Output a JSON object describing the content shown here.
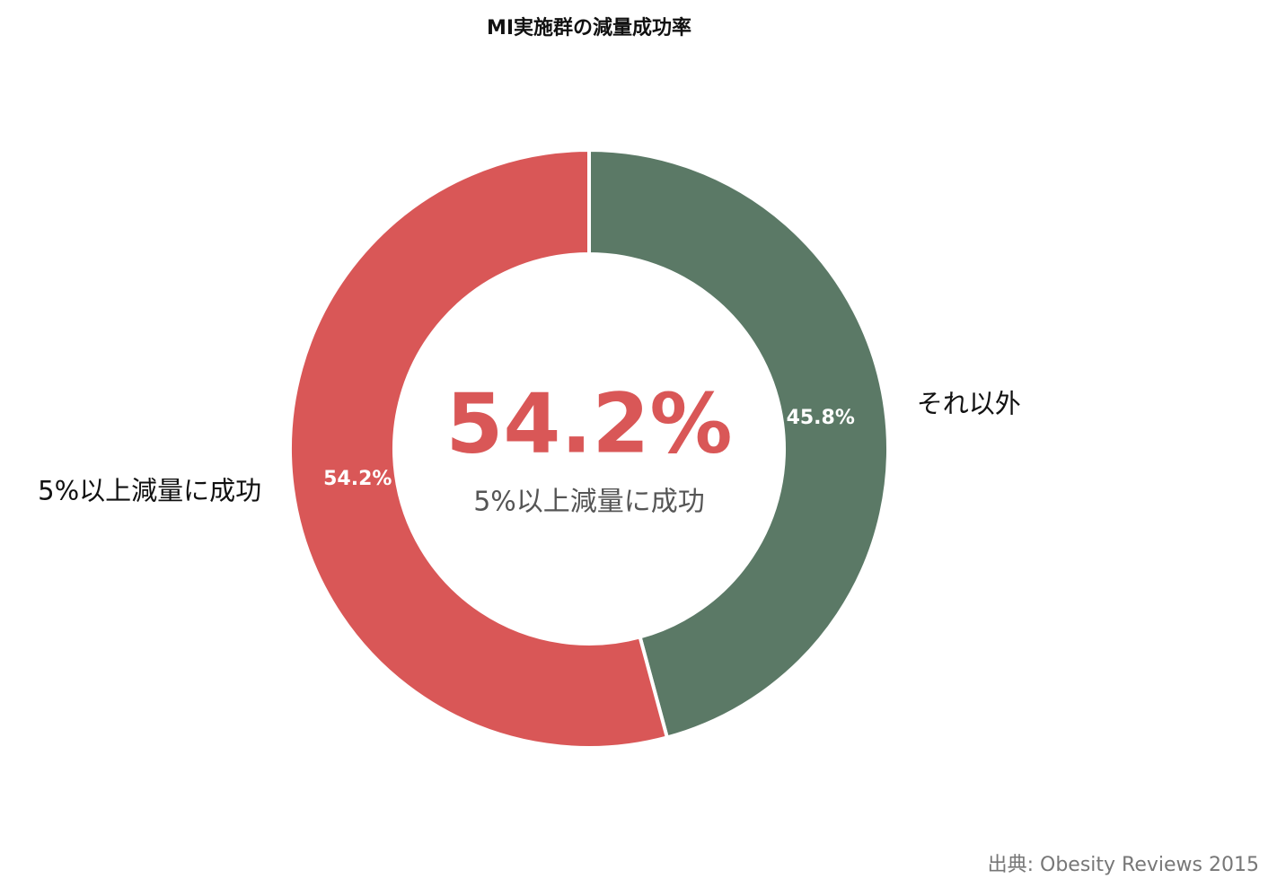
{
  "chart_data": {
    "type": "donut",
    "title": "MI実施群の減量成功率",
    "categories": [
      "それ以外",
      "5%以上減量に成功"
    ],
    "values": [
      45.8,
      54.2
    ],
    "value_labels": [
      "45.8%",
      "54.2%"
    ],
    "colors": [
      "#5b7966",
      "#d95757"
    ],
    "highlight": 1,
    "source": "出典: Obesity Reviews 2015"
  }
}
